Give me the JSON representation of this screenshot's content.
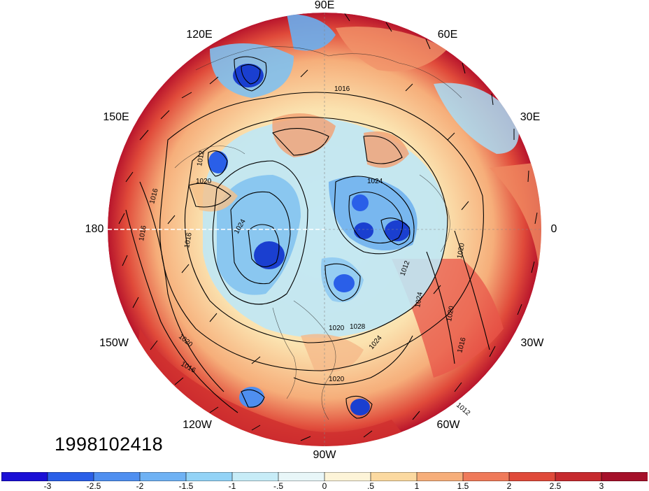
{
  "timestamp": "1998102418",
  "longitude_labels": [
    {
      "text": "90E",
      "name": "lon-label-90e"
    },
    {
      "text": "60E",
      "name": "lon-label-60e"
    },
    {
      "text": "120E",
      "name": "lon-label-120e"
    },
    {
      "text": "30E",
      "name": "lon-label-30e"
    },
    {
      "text": "150E",
      "name": "lon-label-150e"
    },
    {
      "text": "180",
      "name": "lon-label-180"
    },
    {
      "text": "0",
      "name": "lon-label-0"
    },
    {
      "text": "150W",
      "name": "lon-label-150w"
    },
    {
      "text": "30W",
      "name": "lon-label-30w"
    },
    {
      "text": "120W",
      "name": "lon-label-120w"
    },
    {
      "text": "60W",
      "name": "lon-label-60w"
    },
    {
      "text": "90W",
      "name": "lon-label-90w"
    }
  ],
  "isobar_labels": [
    "1016",
    "1012",
    "1020",
    "1016",
    "1024",
    "1016",
    "1016",
    "1024",
    "1012",
    "1020",
    "1024",
    "1020",
    "1016",
    "1020",
    "1028",
    "1024",
    "1020",
    "1016",
    "1012",
    "1020"
  ],
  "colorbar": {
    "ticks": [
      "-3",
      "-2.5",
      "-2",
      "-1.5",
      "-1",
      "-.5",
      "0",
      ".5",
      "1",
      "1.5",
      "2",
      "2.5",
      "3"
    ],
    "colors": [
      "#1a0fd6",
      "#2a5fe8",
      "#4f8ff0",
      "#6fb2f4",
      "#93d3f6",
      "#c7ecf7",
      "#e8f6f8",
      "#fdf4d8",
      "#fbd9a0",
      "#f6ae7a",
      "#ef7a5a",
      "#e04a3a",
      "#c62a2e",
      "#a5102a"
    ]
  }
}
